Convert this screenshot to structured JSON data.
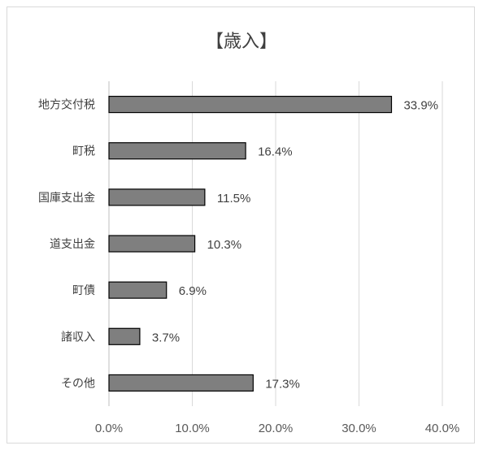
{
  "chart_data": {
    "type": "bar",
    "orientation": "horizontal",
    "title": "【歳入】",
    "categories": [
      "地方交付税",
      "町税",
      "国庫支出金",
      "道支出金",
      "町債",
      "諸収入",
      "その他"
    ],
    "values": [
      33.9,
      16.4,
      11.5,
      10.3,
      6.9,
      3.7,
      17.3
    ],
    "value_labels": [
      "33.9%",
      "16.4%",
      "11.5%",
      "10.3%",
      "6.9%",
      "3.7%",
      "17.3%"
    ],
    "xlim": [
      0,
      40
    ],
    "xticks": [
      0,
      10,
      20,
      30,
      40
    ],
    "xtick_labels": [
      "0.0%",
      "10.0%",
      "20.0%",
      "30.0%",
      "40.0%"
    ],
    "xlabel": "",
    "ylabel": "",
    "grid": true,
    "legend": "none",
    "colors": {
      "bar_fill": "#7f7f7f",
      "bar_stroke": "#000000",
      "grid": "#d9d9d9",
      "text": "#404040"
    }
  }
}
